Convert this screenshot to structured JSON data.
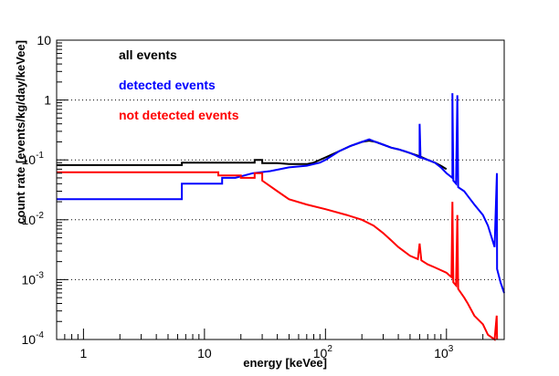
{
  "chart_data": {
    "type": "line",
    "xlabel": "energy [keVee]",
    "ylabel": "count rate [events/kg/day/keVee]",
    "x_scale": "log",
    "y_scale": "log",
    "xlim": [
      0.6,
      3000
    ],
    "ylim": [
      0.0001,
      10
    ],
    "grid_y": true,
    "grid_x": false,
    "legend_placement": "top-left",
    "x_tick_labels": [
      {
        "value": 1,
        "base": "1",
        "exp": ""
      },
      {
        "value": 10,
        "base": "10",
        "exp": ""
      },
      {
        "value": 100,
        "base": "10",
        "exp": "2"
      },
      {
        "value": 1000,
        "base": "10",
        "exp": "3"
      }
    ],
    "y_tick_labels": [
      {
        "value": 0.0001,
        "base": "10",
        "exp": "-4"
      },
      {
        "value": 0.001,
        "base": "10",
        "exp": "-3"
      },
      {
        "value": 0.01,
        "base": "10",
        "exp": "-2"
      },
      {
        "value": 0.1,
        "base": "10",
        "exp": "-1"
      },
      {
        "value": 1,
        "base": "1",
        "exp": ""
      },
      {
        "value": 10,
        "base": "10",
        "exp": ""
      }
    ],
    "series": [
      {
        "name": "all events",
        "color": "#000000",
        "points": [
          [
            0.6,
            0.082
          ],
          [
            6.5,
            0.082
          ],
          [
            6.5,
            0.09
          ],
          [
            26,
            0.09
          ],
          [
            26,
            0.1
          ],
          [
            30,
            0.1
          ],
          [
            30,
            0.088
          ],
          [
            40,
            0.088
          ],
          [
            50,
            0.085
          ],
          [
            70,
            0.085
          ],
          [
            80,
            0.09
          ],
          [
            100,
            0.11
          ],
          [
            130,
            0.14
          ],
          [
            160,
            0.17
          ],
          [
            200,
            0.2
          ],
          [
            230,
            0.21
          ],
          [
            260,
            0.2
          ],
          [
            300,
            0.18
          ],
          [
            350,
            0.16
          ],
          [
            400,
            0.15
          ],
          [
            500,
            0.13
          ],
          [
            600,
            0.115
          ],
          [
            700,
            0.1
          ],
          [
            800,
            0.09
          ],
          [
            900,
            0.08
          ],
          [
            1000,
            0.07
          ]
        ]
      },
      {
        "name": "detected events",
        "color": "#0000ff",
        "points": [
          [
            0.6,
            0.022
          ],
          [
            6.5,
            0.022
          ],
          [
            6.5,
            0.04
          ],
          [
            14,
            0.04
          ],
          [
            14,
            0.05
          ],
          [
            18,
            0.05
          ],
          [
            25,
            0.06
          ],
          [
            35,
            0.065
          ],
          [
            50,
            0.075
          ],
          [
            70,
            0.08
          ],
          [
            90,
            0.09
          ],
          [
            100,
            0.1
          ],
          [
            130,
            0.14
          ],
          [
            160,
            0.17
          ],
          [
            200,
            0.2
          ],
          [
            230,
            0.22
          ],
          [
            260,
            0.2
          ],
          [
            300,
            0.18
          ],
          [
            350,
            0.16
          ],
          [
            400,
            0.15
          ],
          [
            450,
            0.14
          ],
          [
            500,
            0.13
          ],
          [
            550,
            0.12
          ],
          [
            600,
            0.11
          ],
          [
            600,
            0.4
          ],
          [
            610,
            0.11
          ],
          [
            700,
            0.1
          ],
          [
            800,
            0.09
          ],
          [
            900,
            0.075
          ],
          [
            1000,
            0.06
          ],
          [
            1120,
            0.05
          ],
          [
            1120,
            1.3
          ],
          [
            1140,
            0.045
          ],
          [
            1200,
            0.04
          ],
          [
            1230,
            1.2
          ],
          [
            1250,
            0.035
          ],
          [
            1400,
            0.03
          ],
          [
            1500,
            0.025
          ],
          [
            1700,
            0.018
          ],
          [
            2000,
            0.012
          ],
          [
            2200,
            0.008
          ],
          [
            2500,
            0.0035
          ],
          [
            2610,
            0.06
          ],
          [
            2620,
            0.0015
          ],
          [
            2800,
            0.0009
          ],
          [
            3000,
            0.0006
          ]
        ]
      },
      {
        "name": "not detected events",
        "color": "#ff0000",
        "points": [
          [
            0.6,
            0.062
          ],
          [
            6.5,
            0.062
          ],
          [
            13,
            0.062
          ],
          [
            13,
            0.055
          ],
          [
            20,
            0.055
          ],
          [
            20,
            0.05
          ],
          [
            26,
            0.05
          ],
          [
            26,
            0.06
          ],
          [
            30,
            0.06
          ],
          [
            30,
            0.045
          ],
          [
            40,
            0.03
          ],
          [
            50,
            0.022
          ],
          [
            70,
            0.018
          ],
          [
            100,
            0.015
          ],
          [
            150,
            0.012
          ],
          [
            200,
            0.01
          ],
          [
            250,
            0.008
          ],
          [
            300,
            0.006
          ],
          [
            350,
            0.0045
          ],
          [
            400,
            0.0035
          ],
          [
            500,
            0.0025
          ],
          [
            580,
            0.0022
          ],
          [
            600,
            0.004
          ],
          [
            620,
            0.0021
          ],
          [
            700,
            0.0018
          ],
          [
            800,
            0.0016
          ],
          [
            1000,
            0.0013
          ],
          [
            1100,
            0.0011
          ],
          [
            1120,
            0.02
          ],
          [
            1140,
            0.0009
          ],
          [
            1200,
            0.0008
          ],
          [
            1230,
            0.012
          ],
          [
            1250,
            0.0007
          ],
          [
            1400,
            0.0005
          ],
          [
            1500,
            0.0004
          ],
          [
            1700,
            0.00025
          ],
          [
            2000,
            0.00018
          ],
          [
            2200,
            0.00012
          ],
          [
            2500,
            0.0001
          ],
          [
            2600,
            0.00025
          ],
          [
            2620,
            0.0001
          ]
        ]
      }
    ]
  }
}
